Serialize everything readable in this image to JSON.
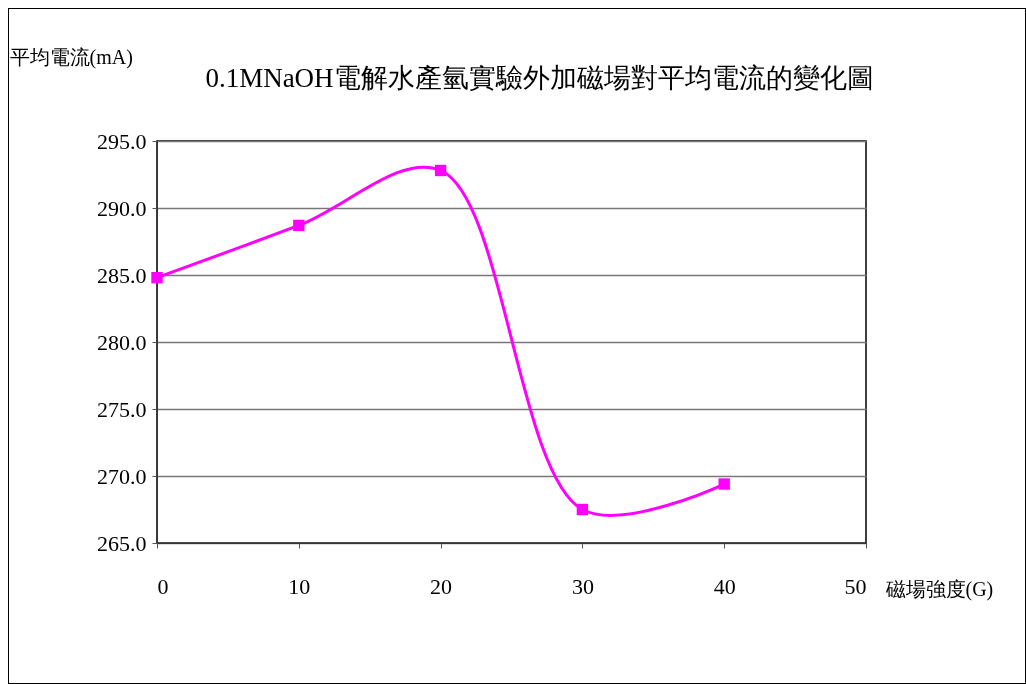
{
  "chart_data": {
    "type": "line",
    "title": "0.1MNaOH電解水產氫實驗外加磁場對平均電流的變化圖",
    "xlabel": "磁場強度(G)",
    "ylabel": "平均電流(mA)",
    "x": [
      0,
      10,
      20,
      30,
      40
    ],
    "series": [
      {
        "color": "#ff00ff",
        "values": [
          284.8,
          288.7,
          292.8,
          267.5,
          269.4
        ]
      }
    ],
    "xlim": [
      0,
      50
    ],
    "xticks": [
      0,
      10,
      20,
      30,
      40,
      50
    ],
    "ylim": [
      265,
      295
    ],
    "yticks": [
      {
        "value": 265,
        "label": "265.0"
      },
      {
        "value": 270,
        "label": "270.0"
      },
      {
        "value": 275,
        "label": "275.0"
      },
      {
        "value": 280,
        "label": "280.0"
      },
      {
        "value": 285,
        "label": "285.0"
      },
      {
        "value": 290,
        "label": "290.0"
      },
      {
        "value": 295,
        "label": "295.0"
      }
    ],
    "grid": "y",
    "marker": "square",
    "line_style": "solid",
    "legend": false
  }
}
